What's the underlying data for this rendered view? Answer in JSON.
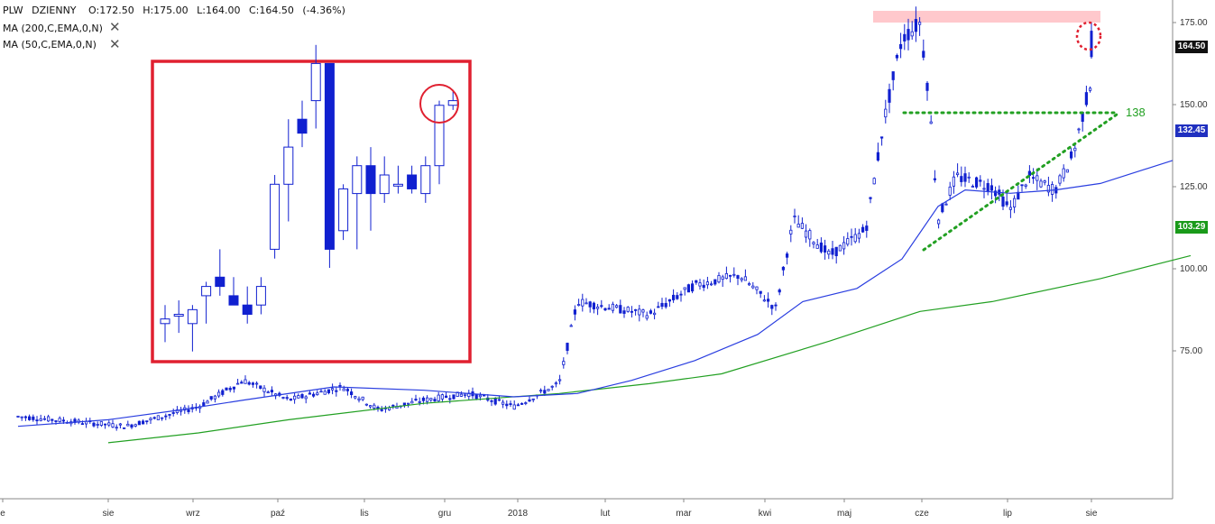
{
  "header": {
    "symbol": "PLW",
    "interval": "DZIENNY",
    "open": "O:172.50",
    "high": "H:175.00",
    "low": "L:164.00",
    "close": "C:164.50",
    "change": "(-4.36%)",
    "indicators": [
      {
        "label": "MA (200,C,EMA,0,N)",
        "color": "#22a022"
      },
      {
        "label": "MA (50,C,EMA,0,N)",
        "color": "#2a3ee0"
      }
    ],
    "close_icon": "close-x-icon"
  },
  "price_tags": {
    "last": {
      "text": "164.50",
      "color": "#111111"
    },
    "ma50": {
      "text": "132.45",
      "color": "#2030c0"
    },
    "ma200": {
      "text": "103.29",
      "color": "#1a9a1a"
    }
  },
  "annotations": {
    "level_label": "138",
    "colors": {
      "candle": "#1020d0",
      "resistance_zone": "#ffc8cc",
      "trend_lines": "#22a022",
      "inset_border": "#e02030",
      "circle": "#e02030"
    }
  },
  "chart_data": {
    "type": "candlestick",
    "title": "",
    "ylim": [
      49,
      182
    ],
    "y_ticks": [
      "175.00",
      "150.00",
      "125.00",
      "100.00",
      "75.00"
    ],
    "x_ticks": [
      "e",
      "sie",
      "wrz",
      "paź",
      "lis",
      "gru",
      "2018",
      "lut",
      "mar",
      "kwi",
      "maj",
      "cze",
      "lip",
      "sie"
    ],
    "series": [
      {
        "name": "MA (200,C,EMA,0,N)",
        "color": "#22a022",
        "points": [
          [
            0.1,
            47
          ],
          [
            0.2,
            50
          ],
          [
            0.3,
            54
          ],
          [
            0.45,
            59
          ],
          [
            0.6,
            62
          ],
          [
            0.7,
            65
          ],
          [
            0.78,
            68
          ],
          [
            0.9,
            78
          ],
          [
            1.0,
            87
          ],
          [
            1.08,
            90
          ],
          [
            1.2,
            97
          ],
          [
            1.3,
            104
          ]
        ]
      },
      {
        "name": "MA (50,C,EMA,0,N)",
        "color": "#2a3ee0",
        "points": [
          [
            0.0,
            52
          ],
          [
            0.1,
            54
          ],
          [
            0.18,
            57
          ],
          [
            0.25,
            60
          ],
          [
            0.35,
            64
          ],
          [
            0.45,
            63
          ],
          [
            0.55,
            61
          ],
          [
            0.62,
            62
          ],
          [
            0.68,
            66
          ],
          [
            0.75,
            72
          ],
          [
            0.82,
            80
          ],
          [
            0.87,
            90
          ],
          [
            0.93,
            94
          ],
          [
            0.98,
            103
          ],
          [
            1.02,
            119
          ],
          [
            1.05,
            124
          ],
          [
            1.1,
            123
          ],
          [
            1.15,
            124
          ],
          [
            1.2,
            126
          ],
          [
            1.28,
            133
          ]
        ]
      }
    ],
    "resistance_zone": [
      175,
      179
    ],
    "horizontal_level": 138,
    "rising_support": [
      [
        1.02,
        97
      ],
      [
        1.25,
        140
      ]
    ],
    "inset": {
      "description": "zoomed recent candles",
      "last_candle": {
        "open": 172.5,
        "high": 175.0,
        "low": 164.0,
        "close": 164.5
      }
    }
  }
}
